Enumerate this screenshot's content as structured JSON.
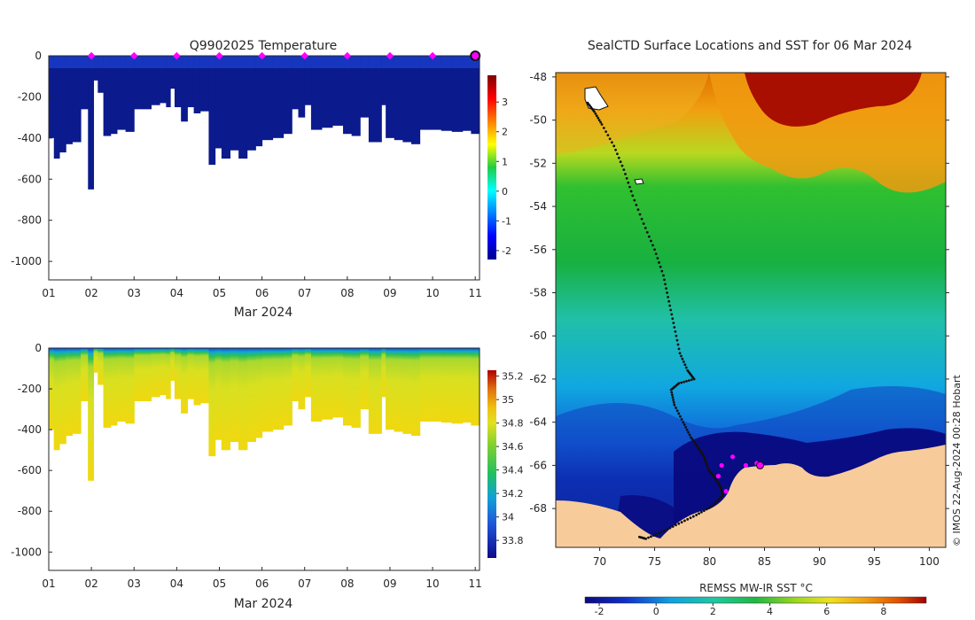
{
  "chart_data": [
    {
      "type": "heatmap",
      "title": "Q9902025  Temperature",
      "xlabel": "Mar 2024",
      "ylabel": "",
      "x_ticks": [
        "01",
        "02",
        "03",
        "04",
        "05",
        "06",
        "07",
        "08",
        "09",
        "10",
        "11"
      ],
      "y_ticks": [
        "0",
        "-200",
        "-400",
        "-600",
        "-800",
        "-1000"
      ],
      "xlim": [
        1,
        11.1
      ],
      "ylim": [
        -1090,
        0
      ],
      "colorbar": {
        "ticks": [
          "-2",
          "-1",
          "0",
          "1",
          "2",
          "3"
        ],
        "range": [
          -2.3,
          3.9
        ]
      },
      "surface_marker_days": [
        2,
        3,
        4,
        5,
        6,
        7,
        8,
        9,
        10,
        11
      ],
      "highlight_day": 11,
      "profiles": [
        {
          "day": 1.0,
          "depth": -400
        },
        {
          "day": 1.12,
          "depth": -500
        },
        {
          "day": 1.25,
          "depth": -470
        },
        {
          "day": 1.4,
          "depth": -430
        },
        {
          "day": 1.55,
          "depth": -420
        },
        {
          "day": 1.75,
          "depth": -260
        },
        {
          "day": 1.92,
          "depth": -650
        },
        {
          "day": 2.05,
          "depth": -120
        },
        {
          "day": 2.15,
          "depth": -180
        },
        {
          "day": 2.28,
          "depth": -390
        },
        {
          "day": 2.45,
          "depth": -380
        },
        {
          "day": 2.6,
          "depth": -360
        },
        {
          "day": 2.8,
          "depth": -370
        },
        {
          "day": 3.0,
          "depth": -260
        },
        {
          "day": 3.2,
          "depth": -260
        },
        {
          "day": 3.4,
          "depth": -240
        },
        {
          "day": 3.6,
          "depth": -230
        },
        {
          "day": 3.75,
          "depth": -250
        },
        {
          "day": 3.85,
          "depth": -160
        },
        {
          "day": 3.95,
          "depth": -250
        },
        {
          "day": 4.1,
          "depth": -320
        },
        {
          "day": 4.25,
          "depth": -250
        },
        {
          "day": 4.4,
          "depth": -280
        },
        {
          "day": 4.55,
          "depth": -270
        },
        {
          "day": 4.75,
          "depth": -530
        },
        {
          "day": 4.9,
          "depth": -450
        },
        {
          "day": 5.05,
          "depth": -500
        },
        {
          "day": 5.25,
          "depth": -460
        },
        {
          "day": 5.45,
          "depth": -500
        },
        {
          "day": 5.65,
          "depth": -460
        },
        {
          "day": 5.85,
          "depth": -440
        },
        {
          "day": 6.0,
          "depth": -410
        },
        {
          "day": 6.25,
          "depth": -400
        },
        {
          "day": 6.5,
          "depth": -380
        },
        {
          "day": 6.7,
          "depth": -260
        },
        {
          "day": 6.85,
          "depth": -300
        },
        {
          "day": 7.0,
          "depth": -240
        },
        {
          "day": 7.15,
          "depth": -360
        },
        {
          "day": 7.4,
          "depth": -350
        },
        {
          "day": 7.65,
          "depth": -340
        },
        {
          "day": 7.9,
          "depth": -380
        },
        {
          "day": 8.1,
          "depth": -390
        },
        {
          "day": 8.3,
          "depth": -300
        },
        {
          "day": 8.5,
          "depth": -420
        },
        {
          "day": 8.8,
          "depth": -240
        },
        {
          "day": 8.9,
          "depth": -400
        },
        {
          "day": 9.1,
          "depth": -410
        },
        {
          "day": 9.3,
          "depth": -420
        },
        {
          "day": 9.5,
          "depth": -430
        },
        {
          "day": 9.7,
          "depth": -360
        },
        {
          "day": 9.95,
          "depth": -360
        },
        {
          "day": 10.2,
          "depth": -365
        },
        {
          "day": 10.45,
          "depth": -370
        },
        {
          "day": 10.7,
          "depth": -365
        },
        {
          "day": 10.9,
          "depth": -380
        }
      ]
    },
    {
      "type": "heatmap",
      "title": "",
      "xlabel": "Mar 2024",
      "ylabel": "",
      "x_ticks": [
        "01",
        "02",
        "03",
        "04",
        "05",
        "06",
        "07",
        "08",
        "09",
        "10",
        "11"
      ],
      "y_ticks": [
        "0",
        "-200",
        "-400",
        "-600",
        "-800",
        "-1000"
      ],
      "xlim": [
        1,
        11.1
      ],
      "ylim": [
        -1090,
        0
      ],
      "colorbar": {
        "ticks": [
          "33.8",
          "34",
          "34.2",
          "34.4",
          "34.6",
          "34.8",
          "35",
          "35.2"
        ],
        "range": [
          33.65,
          35.25
        ]
      },
      "profiles_same_as_temperature": true
    },
    {
      "type": "heatmap",
      "title": "SealCTD Surface Locations and SST for 06 Mar 2024",
      "xlabel": "",
      "ylabel": "",
      "x_ticks": [
        "70",
        "75",
        "80",
        "85",
        "90",
        "95",
        "100"
      ],
      "y_ticks": [
        "-48",
        "-50",
        "-52",
        "-54",
        "-56",
        "-58",
        "-60",
        "-62",
        "-64",
        "-66",
        "-68"
      ],
      "xlim": [
        66,
        101.5
      ],
      "ylim": [
        -69.8,
        -47.8
      ],
      "colorbar": {
        "label": "REMSS MW-IR SST °C",
        "ticks": [
          "-2",
          "0",
          "2",
          "4",
          "6",
          "8"
        ],
        "range": [
          -2.5,
          9.5
        ]
      },
      "track": [
        [
          68.9,
          -49.2
        ],
        [
          69.5,
          -49.6
        ],
        [
          70.2,
          -50.2
        ],
        [
          71.3,
          -51.2
        ],
        [
          72.2,
          -52.3
        ],
        [
          73.0,
          -53.5
        ],
        [
          74.0,
          -54.8
        ],
        [
          75.0,
          -56.0
        ],
        [
          75.8,
          -57.2
        ],
        [
          76.3,
          -58.4
        ],
        [
          76.8,
          -59.6
        ],
        [
          77.3,
          -60.8
        ],
        [
          78.0,
          -61.6
        ],
        [
          78.6,
          -62.0
        ],
        [
          77.2,
          -62.2
        ],
        [
          76.5,
          -62.5
        ],
        [
          76.8,
          -63.2
        ],
        [
          77.6,
          -64.0
        ],
        [
          78.3,
          -64.7
        ],
        [
          79.0,
          -65.2
        ],
        [
          79.5,
          -65.6
        ],
        [
          79.9,
          -66.2
        ],
        [
          80.5,
          -66.6
        ],
        [
          81.0,
          -67.0
        ],
        [
          81.2,
          -67.4
        ],
        [
          80.2,
          -67.9
        ],
        [
          78.8,
          -68.3
        ],
        [
          77.2,
          -68.7
        ],
        [
          75.6,
          -69.1
        ],
        [
          74.2,
          -69.4
        ],
        [
          73.5,
          -69.3
        ]
      ],
      "locations": [
        [
          80.8,
          -66.5
        ],
        [
          81.1,
          -66.0
        ],
        [
          82.1,
          -65.6
        ],
        [
          83.3,
          -66.0
        ],
        [
          84.3,
          -65.9
        ],
        [
          84.6,
          -66.0
        ],
        [
          81.5,
          -67.2
        ]
      ],
      "credit": "© IMOS 22-Aug-2024 00:28 Hobart"
    }
  ],
  "labels": {
    "title_temp": "Q9902025  Temperature",
    "title_map": "SealCTD Surface Locations and SST for 06 Mar 2024",
    "xlabel_top": "Mar 2024",
    "xlabel_bottom": "Mar 2024",
    "cb_map_label": "REMSS MW-IR SST °C",
    "credit": "© IMOS 22-Aug-2024 00:28 Hobart"
  },
  "colors": {
    "deep_blue": "#0b1a8c",
    "land": "#f8cc9a",
    "marker": "#ff00ff",
    "track": "#111111"
  }
}
